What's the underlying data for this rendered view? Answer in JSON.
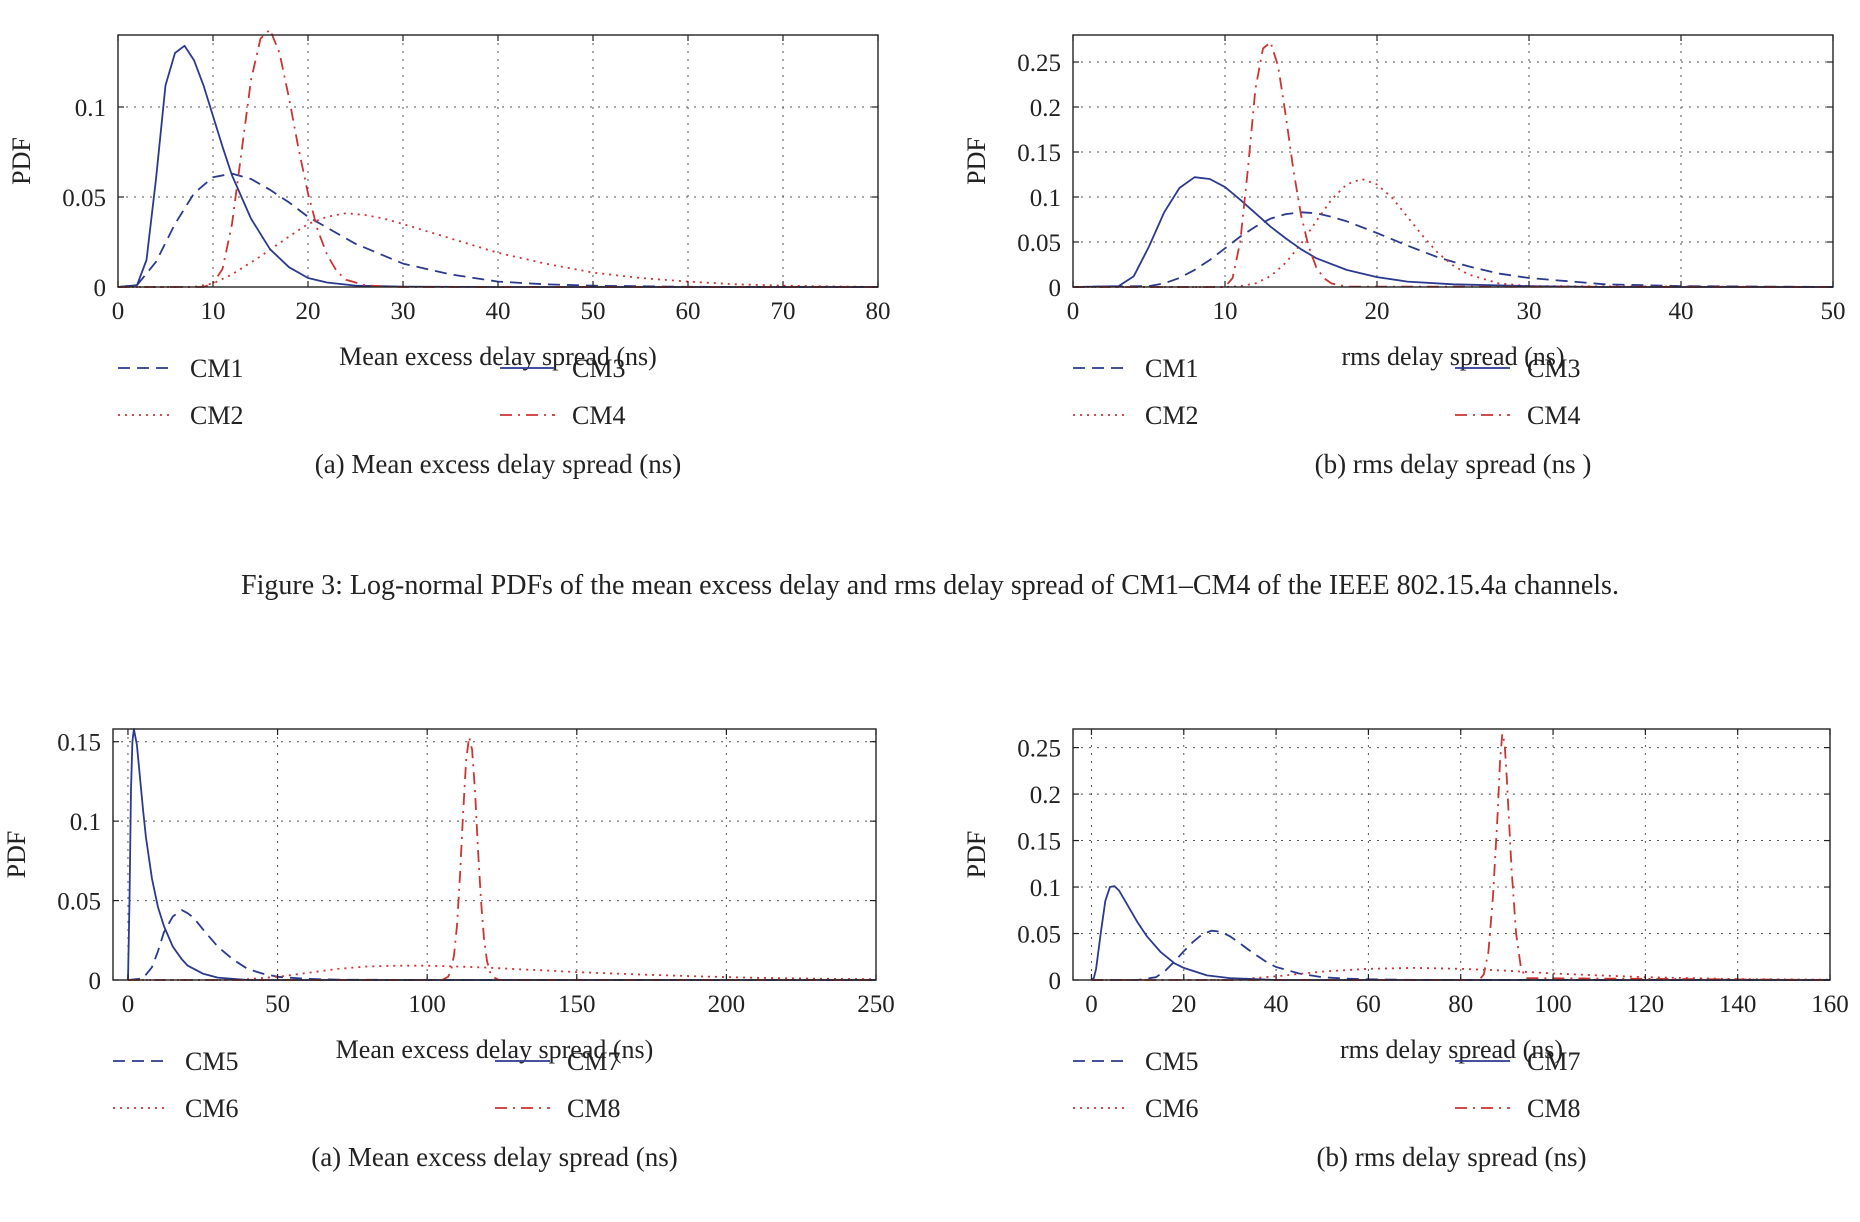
{
  "figure3": {
    "caption": "Figure 3: Log-normal PDFs of the mean excess delay and rms delay spread of CM1–CM4 of the IEEE 802.15.4a channels."
  },
  "chart_data": [
    {
      "id": "fig3a",
      "type": "line",
      "subcaption": "(a)  Mean excess delay spread (ns)",
      "xlabel": "Mean excess delay spread (ns)",
      "ylabel": "PDF",
      "xlim": [
        0,
        80
      ],
      "ylim": [
        0,
        0.14
      ],
      "xticks": [
        0,
        10,
        20,
        30,
        40,
        50,
        60,
        70,
        80
      ],
      "yticks": [
        0,
        0.05,
        0.1
      ],
      "ytick_labels": [
        "0",
        "0.05",
        "0.1"
      ],
      "grid": true,
      "legend_placement": "below",
      "series": [
        {
          "name": "CM1",
          "style": "dashed",
          "color": "#2b3a8f",
          "x": [
            0,
            2,
            4,
            6,
            8,
            10,
            12,
            14,
            16,
            18,
            20,
            25,
            30,
            35,
            40,
            45,
            50,
            60,
            70,
            80
          ],
          "y": [
            0,
            0.001,
            0.014,
            0.035,
            0.052,
            0.061,
            0.063,
            0.06,
            0.054,
            0.047,
            0.039,
            0.024,
            0.013,
            0.007,
            0.003,
            0.0015,
            0.0007,
            0.0001,
            0,
            0
          ]
        },
        {
          "name": "CM2",
          "style": "dotted",
          "color": "#cc3333",
          "x": [
            0,
            8,
            10,
            12,
            15,
            18,
            20,
            22,
            24,
            26,
            28,
            30,
            35,
            40,
            45,
            50,
            55,
            60,
            65,
            70,
            80
          ],
          "y": [
            0,
            0,
            0.002,
            0.007,
            0.017,
            0.028,
            0.035,
            0.039,
            0.041,
            0.04,
            0.038,
            0.035,
            0.027,
            0.019,
            0.013,
            0.008,
            0.005,
            0.003,
            0.0015,
            0.0007,
            0
          ]
        },
        {
          "name": "CM3",
          "style": "solid",
          "color": "#2b3a8f",
          "x": [
            0,
            2,
            3,
            4,
            5,
            6,
            7,
            8,
            9,
            10,
            11,
            12,
            14,
            16,
            18,
            20,
            22,
            25,
            30,
            40,
            80
          ],
          "y": [
            0,
            0.001,
            0.015,
            0.06,
            0.112,
            0.13,
            0.134,
            0.126,
            0.112,
            0.095,
            0.078,
            0.062,
            0.038,
            0.021,
            0.011,
            0.005,
            0.0025,
            0.0008,
            0.0002,
            0,
            0
          ]
        },
        {
          "name": "CM4",
          "style": "dashdot",
          "color": "#cc3333",
          "x": [
            0,
            9,
            10,
            11,
            12,
            13,
            14,
            15,
            16,
            17,
            18,
            19,
            20,
            21,
            22,
            23,
            24,
            26,
            28,
            30,
            80
          ],
          "y": [
            0,
            0,
            0.002,
            0.01,
            0.035,
            0.075,
            0.115,
            0.138,
            0.143,
            0.13,
            0.105,
            0.077,
            0.052,
            0.032,
            0.018,
            0.009,
            0.004,
            0.001,
            0.0002,
            0,
            0
          ]
        }
      ]
    },
    {
      "id": "fig3b",
      "type": "line",
      "subcaption": "(b)  rms delay spread (ns )",
      "xlabel": "rms delay spread (ns)",
      "ylabel": "PDF",
      "xlim": [
        0,
        50
      ],
      "ylim": [
        0,
        0.28
      ],
      "xticks": [
        0,
        10,
        20,
        30,
        40,
        50
      ],
      "yticks": [
        0,
        0.05,
        0.1,
        0.15,
        0.2,
        0.25
      ],
      "ytick_labels": [
        "0",
        "0.05",
        "0.1",
        "0.15",
        "0.2",
        "0.25"
      ],
      "grid": true,
      "legend_placement": "below",
      "series": [
        {
          "name": "CM1",
          "style": "dashed",
          "color": "#2b3a8f",
          "x": [
            0,
            5,
            6,
            7,
            8,
            9,
            10,
            11,
            12,
            13,
            14,
            15,
            16,
            17,
            18,
            20,
            22,
            24,
            26,
            28,
            30,
            35,
            40,
            50
          ],
          "y": [
            0,
            0.001,
            0.004,
            0.01,
            0.019,
            0.03,
            0.043,
            0.056,
            0.067,
            0.076,
            0.081,
            0.083,
            0.082,
            0.078,
            0.073,
            0.06,
            0.046,
            0.033,
            0.023,
            0.015,
            0.01,
            0.003,
            0.001,
            0
          ]
        },
        {
          "name": "CM2",
          "style": "dotted",
          "color": "#cc3333",
          "x": [
            0,
            10,
            11,
            12,
            13,
            14,
            15,
            16,
            17,
            18,
            19,
            20,
            21,
            22,
            23,
            24,
            25,
            26,
            28,
            30,
            50
          ],
          "y": [
            0,
            0,
            0.001,
            0.004,
            0.012,
            0.027,
            0.048,
            0.073,
            0.097,
            0.114,
            0.12,
            0.114,
            0.099,
            0.078,
            0.057,
            0.038,
            0.024,
            0.014,
            0.004,
            0.001,
            0
          ]
        },
        {
          "name": "CM3",
          "style": "solid",
          "color": "#2b3a8f",
          "x": [
            0,
            3,
            4,
            5,
            6,
            7,
            8,
            9,
            10,
            11,
            12,
            13,
            14,
            15,
            16,
            18,
            20,
            22,
            25,
            30,
            35,
            50
          ],
          "y": [
            0,
            0.001,
            0.012,
            0.045,
            0.083,
            0.11,
            0.122,
            0.12,
            0.111,
            0.097,
            0.082,
            0.067,
            0.054,
            0.042,
            0.032,
            0.019,
            0.011,
            0.006,
            0.003,
            0.001,
            0,
            0
          ]
        },
        {
          "name": "CM4",
          "style": "dashdot",
          "color": "#cc3333",
          "x": [
            0,
            10,
            10.5,
            11,
            11.5,
            12,
            12.5,
            13,
            13.5,
            14,
            14.5,
            15,
            15.5,
            16,
            16.5,
            17,
            18,
            50
          ],
          "y": [
            0,
            0,
            0.01,
            0.05,
            0.13,
            0.22,
            0.265,
            0.272,
            0.245,
            0.19,
            0.13,
            0.08,
            0.045,
            0.022,
            0.01,
            0.004,
            0.0005,
            0
          ]
        }
      ]
    },
    {
      "id": "fig4a",
      "type": "line",
      "subcaption": "(a)  Mean excess delay spread (ns)",
      "xlabel": "Mean excess delay spread (ns)",
      "ylabel": "PDF",
      "xlim": [
        -5,
        250
      ],
      "ylim": [
        0,
        0.158
      ],
      "xticks": [
        0,
        50,
        100,
        150,
        200,
        250
      ],
      "yticks": [
        0,
        0.05,
        0.1,
        0.15
      ],
      "ytick_labels": [
        "0",
        "0.05",
        "0.1",
        "0.15"
      ],
      "grid": true,
      "legend_placement": "below",
      "series": [
        {
          "name": "CM5",
          "style": "dashed",
          "color": "#2b3a8f",
          "x": [
            0,
            5,
            8,
            10,
            12,
            15,
            18,
            20,
            22,
            25,
            30,
            35,
            40,
            45,
            50,
            60,
            70,
            80,
            100,
            250
          ],
          "y": [
            0,
            0.001,
            0.008,
            0.018,
            0.03,
            0.04,
            0.044,
            0.042,
            0.039,
            0.032,
            0.021,
            0.013,
            0.007,
            0.004,
            0.002,
            0.0007,
            0.0002,
            0.0001,
            0,
            0
          ]
        },
        {
          "name": "CM6",
          "style": "dotted",
          "color": "#cc3333",
          "x": [
            0,
            30,
            40,
            50,
            60,
            70,
            80,
            90,
            100,
            110,
            120,
            130,
            140,
            150,
            170,
            190,
            210,
            230,
            250
          ],
          "y": [
            0,
            0,
            0.0005,
            0.002,
            0.0045,
            0.007,
            0.0085,
            0.009,
            0.009,
            0.0085,
            0.0078,
            0.0068,
            0.006,
            0.005,
            0.0035,
            0.0023,
            0.0014,
            0.0008,
            0.0005
          ]
        },
        {
          "name": "CM7",
          "style": "solid",
          "color": "#2b3a8f",
          "x": [
            0,
            0.5,
            1,
            1.5,
            2,
            3,
            4,
            5,
            6,
            8,
            10,
            12,
            15,
            18,
            20,
            25,
            30,
            40,
            250
          ],
          "y": [
            0,
            0.05,
            0.12,
            0.15,
            0.158,
            0.148,
            0.128,
            0.108,
            0.09,
            0.064,
            0.046,
            0.034,
            0.021,
            0.013,
            0.009,
            0.004,
            0.0015,
            0,
            0
          ]
        },
        {
          "name": "CM8",
          "style": "dashdot",
          "color": "#cc3333",
          "x": [
            0,
            105,
            107,
            108,
            109,
            110,
            111,
            112,
            113,
            114,
            115,
            116,
            117,
            118,
            119,
            120,
            121,
            122,
            124,
            250
          ],
          "y": [
            0,
            0,
            0.002,
            0.006,
            0.016,
            0.035,
            0.067,
            0.105,
            0.138,
            0.153,
            0.145,
            0.118,
            0.082,
            0.05,
            0.026,
            0.012,
            0.005,
            0.002,
            0,
            0
          ]
        }
      ]
    },
    {
      "id": "fig4b",
      "type": "line",
      "subcaption": "(b)  rms delay spread (ns)",
      "xlabel": "rms delay spread (ns)",
      "ylabel": "PDF",
      "xlim": [
        -4,
        160
      ],
      "ylim": [
        0,
        0.27
      ],
      "xticks": [
        0,
        20,
        40,
        60,
        80,
        100,
        120,
        140,
        160
      ],
      "yticks": [
        0,
        0.05,
        0.1,
        0.15,
        0.2,
        0.25
      ],
      "ytick_labels": [
        "0",
        "0.05",
        "0.1",
        "0.15",
        "0.2",
        "0.25"
      ],
      "grid": true,
      "legend_placement": "below",
      "series": [
        {
          "name": "CM5",
          "style": "dashed",
          "color": "#2b3a8f",
          "x": [
            0,
            10,
            14,
            16,
            18,
            20,
            22,
            24,
            26,
            28,
            30,
            32,
            35,
            38,
            40,
            45,
            50,
            55,
            60,
            70,
            160
          ],
          "y": [
            0,
            0,
            0.003,
            0.01,
            0.02,
            0.031,
            0.041,
            0.049,
            0.053,
            0.052,
            0.047,
            0.04,
            0.029,
            0.019,
            0.014,
            0.007,
            0.003,
            0.0015,
            0.0007,
            0.0001,
            0
          ]
        },
        {
          "name": "CM6",
          "style": "dotted",
          "color": "#cc3333",
          "x": [
            0,
            30,
            40,
            50,
            60,
            70,
            80,
            90,
            100,
            110,
            120,
            130,
            140,
            160
          ],
          "y": [
            0,
            0,
            0.004,
            0.009,
            0.012,
            0.013,
            0.012,
            0.01,
            0.007,
            0.005,
            0.003,
            0.002,
            0.001,
            0.0003
          ]
        },
        {
          "name": "CM7",
          "style": "solid",
          "color": "#2b3a8f",
          "x": [
            0,
            0.5,
            1,
            2,
            3,
            4,
            5,
            6,
            8,
            10,
            12,
            15,
            18,
            20,
            25,
            30,
            40,
            160
          ],
          "y": [
            0,
            0.002,
            0.012,
            0.05,
            0.085,
            0.1,
            0.101,
            0.096,
            0.079,
            0.062,
            0.047,
            0.03,
            0.018,
            0.013,
            0.005,
            0.002,
            0,
            0
          ]
        },
        {
          "name": "CM8",
          "style": "dashdot",
          "color": "#cc3333",
          "x": [
            0,
            84,
            85,
            86,
            87,
            88,
            88.5,
            89,
            89.5,
            90,
            91,
            92,
            93,
            94,
            160
          ],
          "y": [
            0,
            0,
            0.006,
            0.03,
            0.09,
            0.18,
            0.235,
            0.265,
            0.255,
            0.215,
            0.12,
            0.05,
            0.015,
            0.002,
            0
          ]
        }
      ]
    }
  ]
}
